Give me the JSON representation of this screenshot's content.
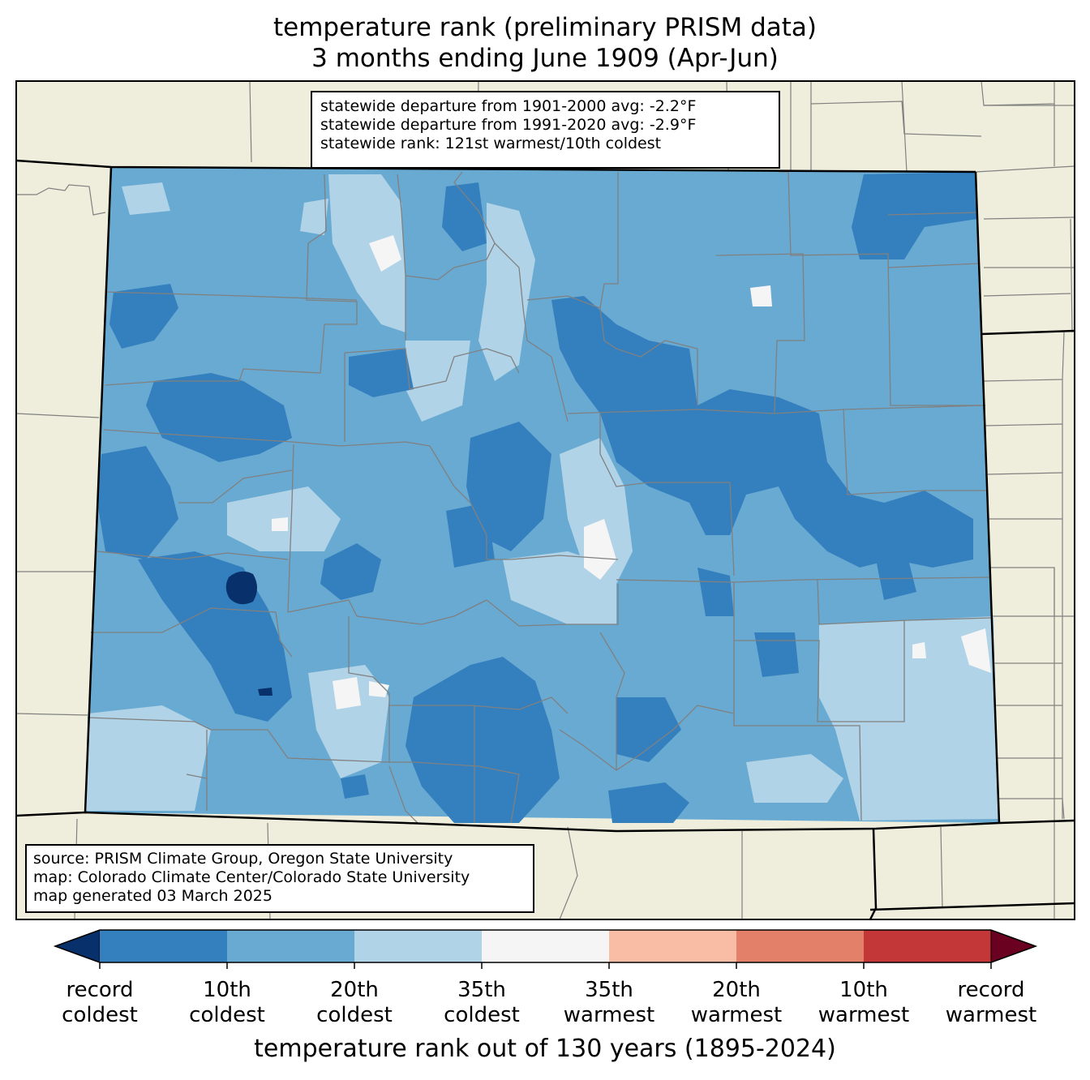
{
  "title": {
    "line1": "temperature rank (preliminary PRISM data)",
    "line2": "3 months ending June 1909 (Apr-Jun)"
  },
  "stats": {
    "line1": "statewide departure from 1901-2000 avg: -2.2°F",
    "line2": "statewide departure from 1991-2020 avg: -2.9°F",
    "line3": "statewide rank: 121st warmest/10th coldest"
  },
  "source": {
    "line1": "source: PRISM Climate Group, Oregon State University",
    "line2": "map: Colorado Climate Center/Colorado State University",
    "line3": "map generated 03 March 2025"
  },
  "colorbar": {
    "title": "temperature rank out of 130 years (1895-2024)",
    "ticks": [
      {
        "top": "record",
        "bottom": "coldest"
      },
      {
        "top": "10th",
        "bottom": "coldest"
      },
      {
        "top": "20th",
        "bottom": "coldest"
      },
      {
        "top": "35th",
        "bottom": "coldest"
      },
      {
        "top": "35th",
        "bottom": "warmest"
      },
      {
        "top": "20th",
        "bottom": "warmest"
      },
      {
        "top": "10th",
        "bottom": "warmest"
      },
      {
        "top": "record",
        "bottom": "warmest"
      }
    ],
    "colors": {
      "record_coldest": "#08306b",
      "c10": "#3480be",
      "c20": "#69aad2",
      "c35": "#b1d3e7",
      "neutral": "#f5f5f5",
      "w35": "#f9bda6",
      "w20": "#e3806a",
      "w10": "#c43739",
      "record_warmest": "#6b0120"
    }
  },
  "map_colors": {
    "background_land": "#efeedd",
    "county_lines": "#808080",
    "state_lines": "#000000"
  }
}
